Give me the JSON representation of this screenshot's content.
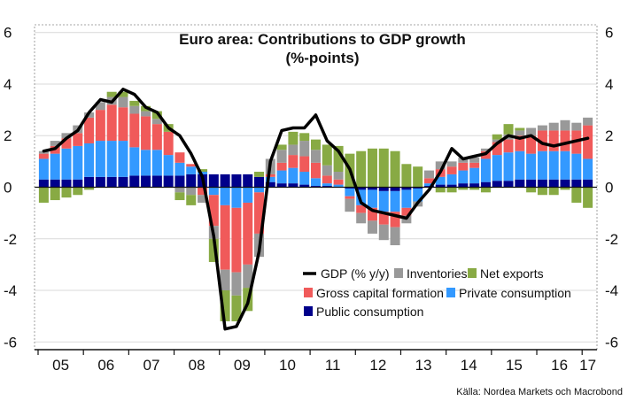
{
  "chart_data": {
    "type": "bar",
    "title": "Euro area: Contributions to GDP growth",
    "subtitle": "(%-points)",
    "source": "Källa: Nordea Markets och Macrobond",
    "yticks": [
      "6",
      "4",
      "2",
      "0",
      "-2",
      "-4",
      "-6"
    ],
    "ylim": [
      -6.3,
      6.3
    ],
    "x_tick_labels": [
      "05",
      "06",
      "07",
      "08",
      "09",
      "10",
      "11",
      "12",
      "13",
      "14",
      "15",
      "16",
      "17"
    ],
    "stacked": true,
    "grid": true,
    "legend_placement": "bottom-right",
    "legend": [
      "GDP (% y/y)",
      "Inventories",
      "Net exports",
      "Gross capital formation",
      "Private consumption",
      "Public consumption"
    ],
    "quarters": [
      "2005Q1",
      "2005Q2",
      "2005Q3",
      "2005Q4",
      "2006Q1",
      "2006Q2",
      "2006Q3",
      "2006Q4",
      "2007Q1",
      "2007Q2",
      "2007Q3",
      "2007Q4",
      "2008Q1",
      "2008Q2",
      "2008Q3",
      "2008Q4",
      "2009Q1",
      "2009Q2",
      "2009Q3",
      "2009Q4",
      "2010Q1",
      "2010Q2",
      "2010Q3",
      "2010Q4",
      "2011Q1",
      "2011Q2",
      "2011Q3",
      "2011Q4",
      "2012Q1",
      "2012Q2",
      "2012Q3",
      "2012Q4",
      "2013Q1",
      "2013Q2",
      "2013Q3",
      "2013Q4",
      "2014Q1",
      "2014Q2",
      "2014Q3",
      "2014Q4",
      "2015Q1",
      "2015Q2",
      "2015Q3",
      "2015Q4",
      "2016Q1",
      "2016Q2",
      "2016Q3",
      "2016Q4",
      "2017Q1"
    ],
    "series": [
      {
        "name": "Public consumption",
        "color": "#00008B",
        "values": [
          0.3,
          0.3,
          0.3,
          0.3,
          0.4,
          0.4,
          0.4,
          0.4,
          0.45,
          0.45,
          0.45,
          0.45,
          0.45,
          0.5,
          0.5,
          0.5,
          0.5,
          0.5,
          0.5,
          0.4,
          0.2,
          0.15,
          0.15,
          0.1,
          0.05,
          0.05,
          0.0,
          -0.05,
          -0.1,
          -0.1,
          -0.15,
          -0.15,
          -0.1,
          -0.05,
          0.05,
          0.1,
          0.1,
          0.15,
          0.15,
          0.2,
          0.25,
          0.25,
          0.3,
          0.3,
          0.3,
          0.3,
          0.3,
          0.3,
          0.3
        ]
      },
      {
        "name": "Private consumption",
        "color": "#3399FF",
        "values": [
          0.8,
          1.0,
          1.2,
          1.3,
          1.3,
          1.4,
          1.4,
          1.4,
          1.1,
          1.0,
          1.0,
          0.8,
          0.5,
          0.3,
          0.1,
          -0.3,
          -0.7,
          -0.8,
          -0.6,
          -0.2,
          0.2,
          0.5,
          0.6,
          0.5,
          0.3,
          0.1,
          0.1,
          -0.3,
          -0.6,
          -0.7,
          -0.8,
          -0.8,
          -0.7,
          -0.5,
          0.1,
          0.3,
          0.4,
          0.5,
          0.6,
          0.9,
          1.0,
          1.1,
          1.1,
          1.0,
          1.1,
          1.1,
          1.1,
          1.0,
          0.8
        ]
      },
      {
        "name": "Gross capital formation",
        "color": "#F05A5A",
        "values": [
          0.2,
          0.3,
          0.4,
          0.5,
          1.0,
          1.2,
          1.4,
          1.3,
          1.3,
          1.3,
          1.0,
          0.9,
          0.4,
          0.1,
          -0.3,
          -1.2,
          -2.5,
          -2.5,
          -2.4,
          -1.6,
          0.1,
          0.3,
          0.5,
          0.6,
          0.6,
          0.3,
          0.2,
          -0.1,
          -0.3,
          -0.5,
          -0.5,
          -0.6,
          -0.3,
          0.0,
          0.2,
          0.3,
          0.3,
          0.3,
          0.2,
          0.3,
          0.5,
          0.5,
          0.6,
          0.7,
          0.8,
          0.8,
          0.8,
          0.9,
          1.3
        ]
      },
      {
        "name": "Inventories",
        "color": "#999999",
        "values": [
          0.1,
          0.2,
          0.2,
          0.3,
          0.2,
          0.3,
          0.3,
          0.4,
          0.3,
          0.2,
          0.2,
          0.0,
          -0.2,
          -0.3,
          -0.3,
          -0.5,
          -0.8,
          -0.9,
          -0.9,
          -0.9,
          0.6,
          0.5,
          0.4,
          0.6,
          0.5,
          0.4,
          0.3,
          -0.5,
          -0.4,
          -0.5,
          -0.6,
          -0.7,
          -0.3,
          -0.2,
          0.3,
          0.3,
          0.2,
          0.2,
          0.2,
          0.1,
          0.1,
          0.2,
          0.2,
          0.3,
          0.2,
          0.3,
          0.4,
          0.3,
          0.3
        ]
      },
      {
        "name": "Net exports",
        "color": "#88AA44",
        "values": [
          -0.6,
          -0.5,
          -0.4,
          -0.3,
          -0.1,
          0.0,
          0.2,
          0.2,
          0.2,
          0.2,
          0.3,
          0.3,
          -0.3,
          -0.4,
          0.1,
          -0.9,
          -1.2,
          -1.0,
          -0.9,
          0.2,
          0.0,
          0.2,
          0.5,
          0.3,
          0.4,
          0.8,
          1.0,
          1.3,
          1.4,
          1.5,
          1.5,
          1.4,
          0.9,
          0.8,
          0.0,
          -0.2,
          -0.2,
          -0.1,
          -0.1,
          -0.2,
          0.2,
          0.4,
          0.1,
          -0.2,
          -0.3,
          -0.3,
          -0.1,
          -0.6,
          -0.8
        ]
      },
      {
        "name": "GDP (% y/y)",
        "color": "#000000",
        "kind": "line",
        "values": [
          1.4,
          1.5,
          1.9,
          2.2,
          2.9,
          3.4,
          3.3,
          3.8,
          3.6,
          3.1,
          2.9,
          2.3,
          2.0,
          1.3,
          0.4,
          -1.9,
          -5.5,
          -5.4,
          -4.5,
          -2.5,
          1.0,
          2.2,
          2.3,
          2.3,
          2.8,
          1.8,
          1.4,
          0.7,
          -0.6,
          -0.9,
          -1.0,
          -1.1,
          -1.2,
          -0.6,
          -0.1,
          0.6,
          1.5,
          1.1,
          1.2,
          1.3,
          1.7,
          2.0,
          1.9,
          2.0,
          1.7,
          1.6,
          1.7,
          1.8,
          1.9
        ]
      }
    ]
  }
}
